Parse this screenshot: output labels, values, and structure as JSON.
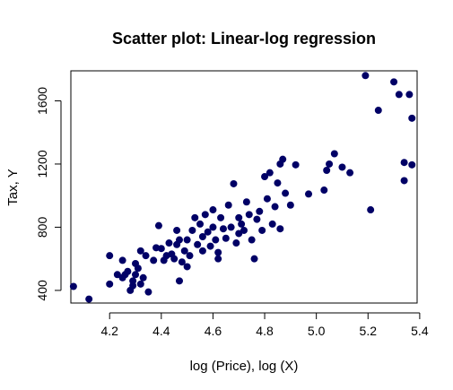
{
  "chart_data": {
    "type": "scatter",
    "title": "Scatter plot: Linear-log regression",
    "xlabel": "log (Price), log (X)",
    "ylabel": "Tax, Y",
    "xlim": [
      4.05,
      5.39
    ],
    "ylim": [
      320,
      1790
    ],
    "xticks": [
      4.2,
      4.4,
      4.6,
      4.8,
      5.0,
      5.2,
      5.4
    ],
    "xtick_labels": [
      "4.2",
      "4.4",
      "4.6",
      "4.8",
      "5.0",
      "5.2",
      "5.4"
    ],
    "yticks": [
      400,
      800,
      1200,
      1600
    ],
    "ytick_labels": [
      "400",
      "800",
      "1200",
      "1600"
    ],
    "grid": false,
    "marker_color": "#000066",
    "series": [
      {
        "points": [
          [
            4.06,
            425
          ],
          [
            4.12,
            345
          ],
          [
            4.2,
            440
          ],
          [
            4.2,
            620
          ],
          [
            4.23,
            500
          ],
          [
            4.25,
            480
          ],
          [
            4.25,
            590
          ],
          [
            4.26,
            500
          ],
          [
            4.27,
            520
          ],
          [
            4.28,
            400
          ],
          [
            4.29,
            430
          ],
          [
            4.29,
            460
          ],
          [
            4.3,
            500
          ],
          [
            4.3,
            570
          ],
          [
            4.31,
            540
          ],
          [
            4.32,
            440
          ],
          [
            4.32,
            650
          ],
          [
            4.33,
            480
          ],
          [
            4.34,
            620
          ],
          [
            4.35,
            390
          ],
          [
            4.37,
            590
          ],
          [
            4.38,
            670
          ],
          [
            4.39,
            810
          ],
          [
            4.4,
            665
          ],
          [
            4.41,
            590
          ],
          [
            4.42,
            620
          ],
          [
            4.43,
            700
          ],
          [
            4.44,
            630
          ],
          [
            4.45,
            600
          ],
          [
            4.46,
            690
          ],
          [
            4.46,
            780
          ],
          [
            4.47,
            460
          ],
          [
            4.47,
            720
          ],
          [
            4.48,
            580
          ],
          [
            4.49,
            650
          ],
          [
            4.5,
            720
          ],
          [
            4.5,
            550
          ],
          [
            4.51,
            620
          ],
          [
            4.52,
            780
          ],
          [
            4.53,
            860
          ],
          [
            4.54,
            690
          ],
          [
            4.55,
            820
          ],
          [
            4.56,
            650
          ],
          [
            4.56,
            740
          ],
          [
            4.57,
            880
          ],
          [
            4.58,
            770
          ],
          [
            4.59,
            680
          ],
          [
            4.6,
            800
          ],
          [
            4.6,
            910
          ],
          [
            4.61,
            720
          ],
          [
            4.62,
            640
          ],
          [
            4.62,
            600
          ],
          [
            4.63,
            860
          ],
          [
            4.64,
            790
          ],
          [
            4.65,
            730
          ],
          [
            4.66,
            940
          ],
          [
            4.67,
            800
          ],
          [
            4.68,
            1075
          ],
          [
            4.69,
            700
          ],
          [
            4.7,
            860
          ],
          [
            4.7,
            760
          ],
          [
            4.71,
            820
          ],
          [
            4.72,
            780
          ],
          [
            4.73,
            960
          ],
          [
            4.74,
            880
          ],
          [
            4.75,
            720
          ],
          [
            4.76,
            600
          ],
          [
            4.77,
            850
          ],
          [
            4.78,
            900
          ],
          [
            4.79,
            780
          ],
          [
            4.8,
            1120
          ],
          [
            4.81,
            980
          ],
          [
            4.82,
            1145
          ],
          [
            4.83,
            820
          ],
          [
            4.84,
            930
          ],
          [
            4.85,
            1080
          ],
          [
            4.86,
            790
          ],
          [
            4.86,
            1200
          ],
          [
            4.87,
            1230
          ],
          [
            4.88,
            1015
          ],
          [
            4.9,
            940
          ],
          [
            4.92,
            1195
          ],
          [
            4.97,
            1010
          ],
          [
            5.03,
            1035
          ],
          [
            5.04,
            1160
          ],
          [
            5.05,
            1200
          ],
          [
            5.07,
            1265
          ],
          [
            5.1,
            1180
          ],
          [
            5.13,
            1145
          ],
          [
            5.19,
            1760
          ],
          [
            5.21,
            910
          ],
          [
            5.24,
            1540
          ],
          [
            5.3,
            1720
          ],
          [
            5.32,
            1640
          ],
          [
            5.34,
            1095
          ],
          [
            5.34,
            1210
          ],
          [
            5.36,
            1640
          ],
          [
            5.37,
            1490
          ],
          [
            5.37,
            1195
          ]
        ]
      }
    ]
  }
}
